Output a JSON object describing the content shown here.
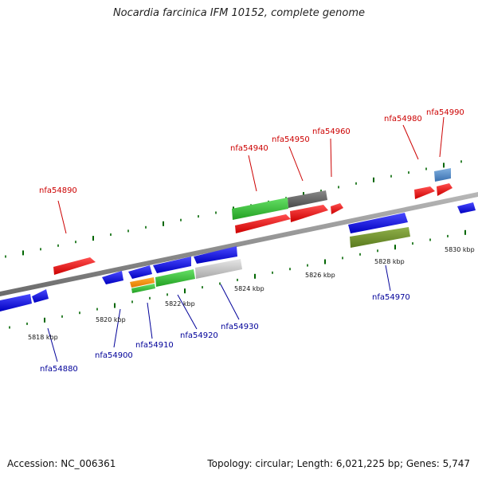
{
  "title": "Nocardia farcinica IFM 10152, complete genome",
  "footer": {
    "accession": "Accession: NC_006361",
    "summary": "Topology: circular; Length: 6,021,225 bp; Genes: 5,747"
  },
  "colors": {
    "forward_label": "#cc0000",
    "reverse_label": "#000099",
    "tick": "#006600",
    "axis": "#8a8a8a"
  },
  "kbp_marks": [
    {
      "label": "5818 kbp"
    },
    {
      "label": "5820 kbp"
    },
    {
      "label": "5822 kbp"
    },
    {
      "label": "5824 kbp"
    },
    {
      "label": "5826 kbp"
    },
    {
      "label": "5828 kbp"
    },
    {
      "label": "5830 kbp"
    }
  ],
  "gene_labels": {
    "forward": [
      "nfa54890",
      "nfa54940",
      "nfa54950",
      "nfa54960",
      "nfa54980",
      "nfa54990"
    ],
    "reverse": [
      "nfa54880",
      "nfa54900",
      "nfa54910",
      "nfa54920",
      "nfa54930",
      "nfa54970"
    ]
  }
}
